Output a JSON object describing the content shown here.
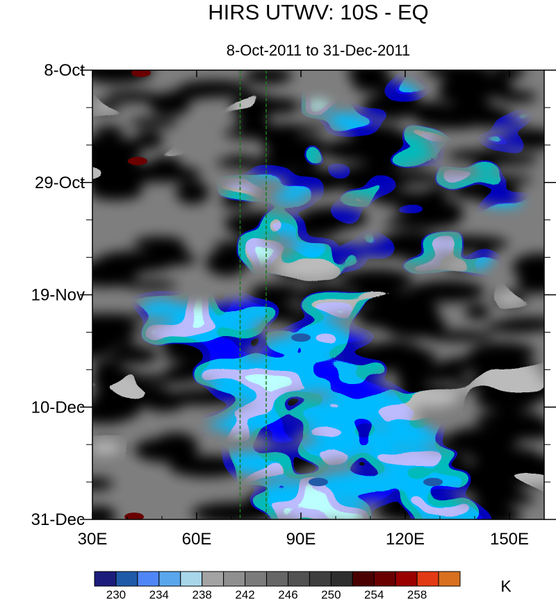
{
  "chart_data": {
    "type": "heatmap",
    "title": "HIRS UTWV: 10S - EQ",
    "subtitle": "8-Oct-2011 to 31-Dec-2011",
    "x_axis": {
      "range": [
        30,
        160
      ],
      "ticks": [
        30,
        60,
        90,
        120,
        150
      ],
      "tick_labels": [
        "30E",
        "60E",
        "90E",
        "120E",
        "150E"
      ]
    },
    "y_axis": {
      "range_days": [
        0,
        84
      ],
      "ticks": [
        0,
        21,
        42,
        63,
        84
      ],
      "tick_labels": [
        "8-Oct",
        "29-Oct",
        "19-Nov",
        "10-Dec",
        "31-Dec"
      ]
    },
    "reference_lines_lon": [
      72.5,
      80
    ],
    "colorbar": {
      "units": "K",
      "levels": [
        230,
        232,
        234,
        236,
        238,
        240,
        242,
        244,
        246,
        248,
        250,
        252,
        254,
        256,
        258
      ],
      "labeled_levels": [
        "230",
        "234",
        "238",
        "242",
        "246",
        "250",
        "254",
        "258"
      ],
      "colors": [
        "#1c1c7c",
        "#1f5aa8",
        "#4f86f7",
        "#5aa6ec",
        "#a9d7ea",
        "#a3a3a3",
        "#8f8f8f",
        "#7b7b7b",
        "#666666",
        "#525252",
        "#3e3e3e",
        "#2e2e2e",
        "#4a0000",
        "#6a0000",
        "#9a0000",
        "#e23a14",
        "#d87020"
      ]
    },
    "features": [
      {
        "lon": 44,
        "day": 0.5,
        "value": 254
      },
      {
        "lon": 43,
        "day": 17,
        "value": 254
      },
      {
        "lon": 42,
        "day": 83.5,
        "value": 254
      },
      {
        "lon": 90,
        "day": 50,
        "value": 231
      },
      {
        "lon": 95,
        "day": 77,
        "value": 230
      },
      {
        "lon": 128,
        "day": 77,
        "value": 231
      }
    ]
  }
}
